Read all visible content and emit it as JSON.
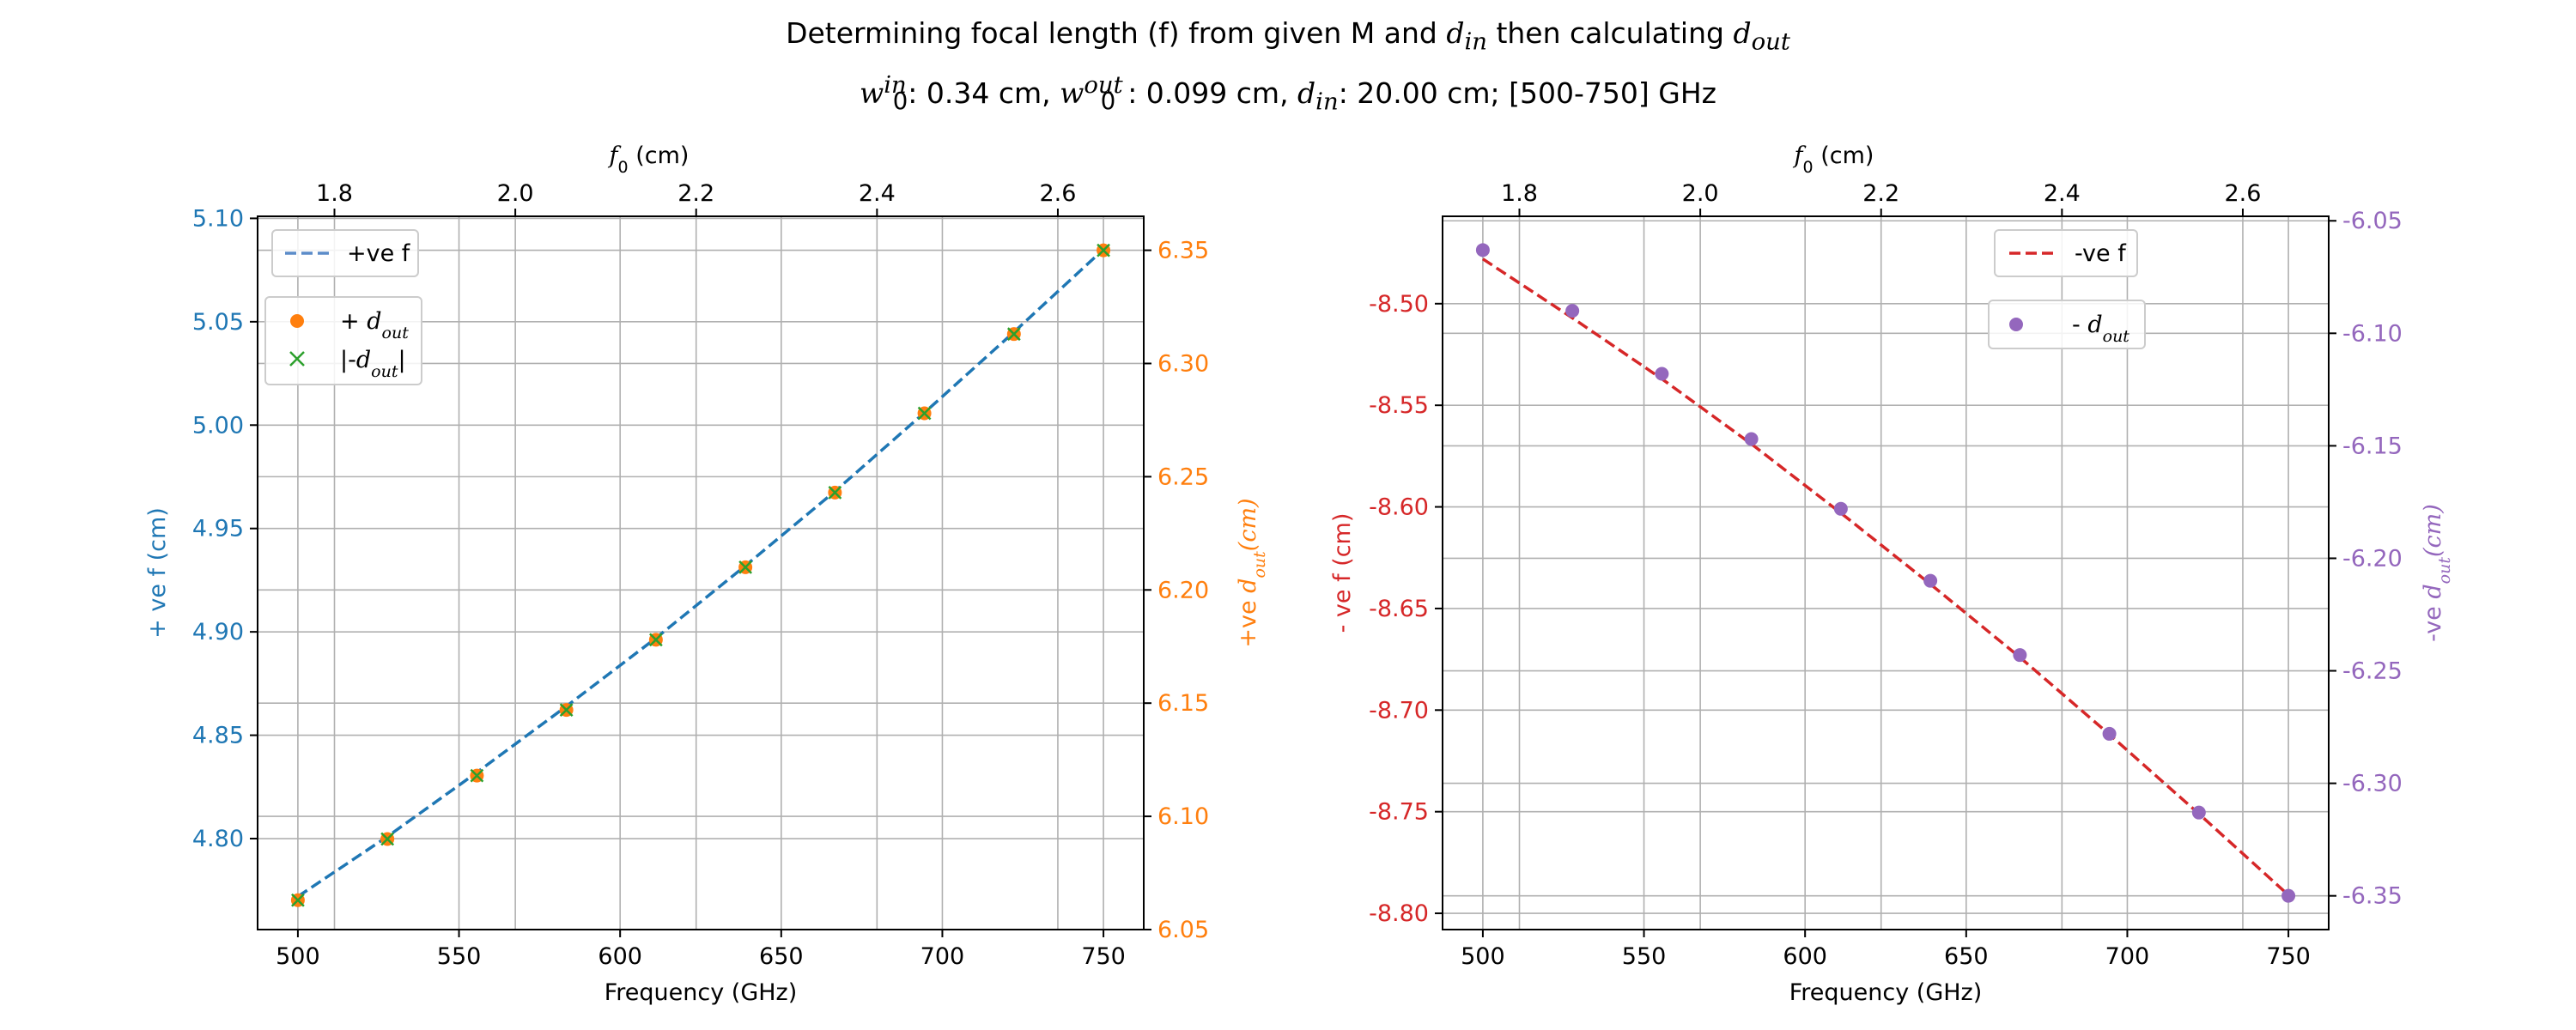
{
  "title": {
    "line1_prefix": "Determining focal length (f) from given M and ",
    "line1_din_base": "d",
    "line1_din_sub": "in",
    "line1_middle": " then calculating ",
    "line1_dout_base": "d",
    "line1_dout_sub": "out",
    "line2_w0in_base": "w",
    "line2_w0in_sup": "in",
    "line2_w0in_sub": "0",
    "line2_w0in_text": ": 0.34 cm, ",
    "line2_w0out_base": "w",
    "line2_w0out_sup": "out",
    "line2_w0out_sub": "0",
    "line2_w0out_text": ": 0.099 cm, ",
    "line2_din_base": "d",
    "line2_din_sub": "in",
    "line2_din_text": ": 20.00 cm; [500-750] GHz"
  },
  "colors": {
    "blue": "#1f77b4",
    "orange": "#ff7f0e",
    "green": "#2ca02c",
    "red": "#d62728",
    "purple": "#9467bd",
    "steel": "#5b8cc9",
    "grid": "#b0b0b0",
    "axis": "#000000"
  },
  "chart_data": [
    {
      "type": "line",
      "x": [
        500,
        527.78,
        555.56,
        583.33,
        611.11,
        638.89,
        666.67,
        694.44,
        722.22,
        750
      ],
      "xlabel": "Frequency (GHz)",
      "xlim": [
        487.5,
        762.5
      ],
      "xticks": [
        500,
        550,
        600,
        650,
        700,
        750
      ],
      "top_axis": {
        "label_base": "f",
        "label_sub": "0",
        "label_text": " (cm)",
        "lim": [
          1.715,
          2.695
        ],
        "ticks": [
          "1.8",
          "2.0",
          "2.2",
          "2.4",
          "2.6"
        ],
        "tick_values": [
          1.8,
          2.0,
          2.2,
          2.4,
          2.6
        ]
      },
      "left_axis": {
        "label": "+ ve f (cm)",
        "lim": [
          4.756,
          5.101
        ],
        "ticks": [
          "4.80",
          "4.85",
          "4.90",
          "4.95",
          "5.00",
          "5.05",
          "5.10"
        ],
        "tick_values": [
          4.8,
          4.85,
          4.9,
          4.95,
          5.0,
          5.05,
          5.1
        ]
      },
      "right_axis": {
        "label_prefix": "+ve ",
        "label_base": "d",
        "label_sub": "out",
        "label_suffix": "(cm)",
        "lim": [
          6.05,
          6.365
        ],
        "ticks": [
          "6.05",
          "6.10",
          "6.15",
          "6.20",
          "6.25",
          "6.30",
          "6.35"
        ],
        "tick_values": [
          6.05,
          6.1,
          6.15,
          6.2,
          6.25,
          6.3,
          6.35
        ]
      },
      "series": [
        {
          "name": "+ve f",
          "style": "dashed",
          "axis": "left",
          "color": "#1f77b4",
          "values": [
            4.772,
            4.801,
            4.832,
            4.864,
            4.897,
            4.932,
            4.968,
            5.006,
            5.045,
            5.085
          ]
        },
        {
          "name": "+ d_out",
          "style": "circle",
          "axis": "right",
          "color": "#ff7f0e",
          "values": [
            6.063,
            6.09,
            6.118,
            6.147,
            6.178,
            6.21,
            6.243,
            6.278,
            6.313,
            6.35
          ]
        },
        {
          "name": "|-d_out|",
          "style": "cross",
          "axis": "right",
          "color": "#2ca02c",
          "values": [
            6.063,
            6.09,
            6.118,
            6.147,
            6.178,
            6.21,
            6.243,
            6.278,
            6.313,
            6.35
          ]
        }
      ],
      "legend1": {
        "entries": [
          {
            "text": "+ve f"
          }
        ],
        "placement": "upper-left"
      },
      "legend2": {
        "entries": [
          {
            "prefix": "+ ",
            "base": "d",
            "sub": "out"
          },
          {
            "prefix": "|-",
            "base": "d",
            "sub": "out",
            "suffix": "|"
          }
        ],
        "placement": "upper-left"
      },
      "grid": true
    },
    {
      "type": "line",
      "x": [
        500,
        527.78,
        555.56,
        583.33,
        611.11,
        638.89,
        666.67,
        694.44,
        722.22,
        750
      ],
      "xlabel": "Frequency (GHz)",
      "xlim": [
        487.5,
        762.5
      ],
      "xticks": [
        500,
        550,
        600,
        650,
        700,
        750
      ],
      "top_axis": {
        "label_base": "f",
        "label_sub": "0",
        "label_text": " (cm)",
        "lim": [
          1.715,
          2.695
        ],
        "ticks": [
          "1.8",
          "2.0",
          "2.2",
          "2.4",
          "2.6"
        ],
        "tick_values": [
          1.8,
          2.0,
          2.2,
          2.4,
          2.6
        ]
      },
      "left_axis": {
        "label": "- ve f (cm)",
        "lim": [
          -8.808,
          -8.457
        ],
        "ticks": [
          "-8.50",
          "-8.55",
          "-8.60",
          "-8.65",
          "-8.70",
          "-8.75",
          "-8.80"
        ],
        "tick_values": [
          -8.5,
          -8.55,
          -8.6,
          -8.65,
          -8.7,
          -8.75,
          -8.8
        ]
      },
      "right_axis": {
        "label_prefix": "-ve ",
        "label_base": "d",
        "label_sub": "out",
        "label_suffix": "(cm)",
        "lim": [
          -6.365,
          -6.048
        ],
        "ticks": [
          "-6.05",
          "-6.10",
          "-6.15",
          "-6.20",
          "-6.25",
          "-6.30",
          "-6.35"
        ],
        "tick_values": [
          -6.05,
          -6.1,
          -6.15,
          -6.2,
          -6.25,
          -6.3,
          -6.35
        ]
      },
      "series": [
        {
          "name": "-ve f",
          "style": "dashed",
          "axis": "left",
          "color": "#d62728",
          "values": [
            -8.478,
            -8.507,
            -8.537,
            -8.569,
            -8.603,
            -8.638,
            -8.674,
            -8.712,
            -8.751,
            -8.791
          ]
        },
        {
          "name": "- d_out",
          "style": "circle",
          "axis": "right",
          "color": "#9467bd",
          "values": [
            -6.063,
            -6.09,
            -6.118,
            -6.147,
            -6.178,
            -6.21,
            -6.243,
            -6.278,
            -6.313,
            -6.35
          ]
        }
      ],
      "legend1": {
        "entries": [
          {
            "text": "-ve f"
          }
        ],
        "placement": "upper-center"
      },
      "legend2": {
        "entries": [
          {
            "prefix": "- ",
            "base": "d",
            "sub": "out"
          }
        ],
        "placement": "upper-center"
      },
      "grid": true
    }
  ]
}
